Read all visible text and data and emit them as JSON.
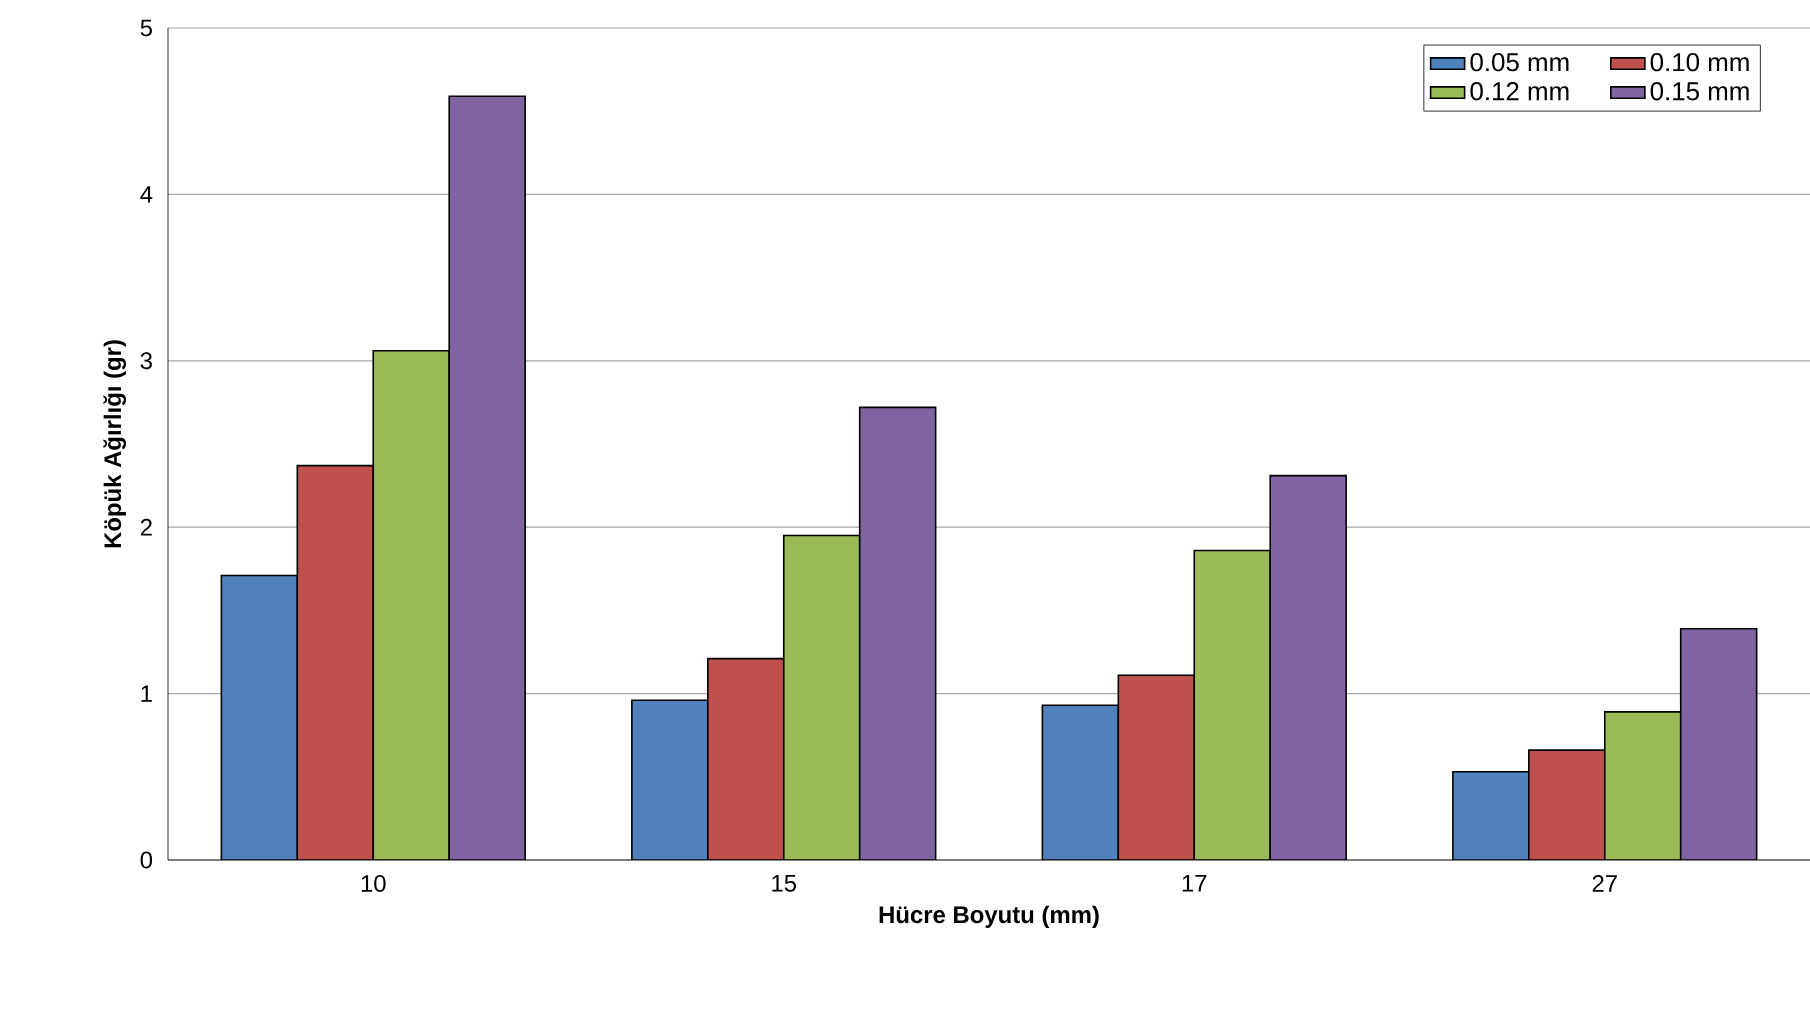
{
  "chart_data": {
    "type": "bar",
    "xlabel": "Hücre Boyutu (mm)",
    "ylabel": "Köpük Ağırlığı (gr)",
    "categories": [
      "10",
      "15",
      "17",
      "27"
    ],
    "series": [
      {
        "name": "0.05 mm",
        "color": "#4f81bd",
        "values": [
          1.71,
          0.96,
          0.93,
          0.53
        ]
      },
      {
        "name": "0.10 mm",
        "color": "#c0504d",
        "values": [
          2.37,
          1.21,
          1.11,
          0.66
        ]
      },
      {
        "name": "0.12 mm",
        "color": "#9bbb59",
        "values": [
          3.06,
          1.95,
          1.86,
          0.89
        ]
      },
      {
        "name": "0.15 mm",
        "color": "#8064a2",
        "values": [
          4.59,
          2.72,
          2.31,
          1.39
        ]
      }
    ],
    "ylim": [
      0,
      5
    ],
    "yticks": [
      0,
      1,
      2,
      3,
      4,
      5
    ],
    "grid": "y",
    "legend": "top right"
  }
}
